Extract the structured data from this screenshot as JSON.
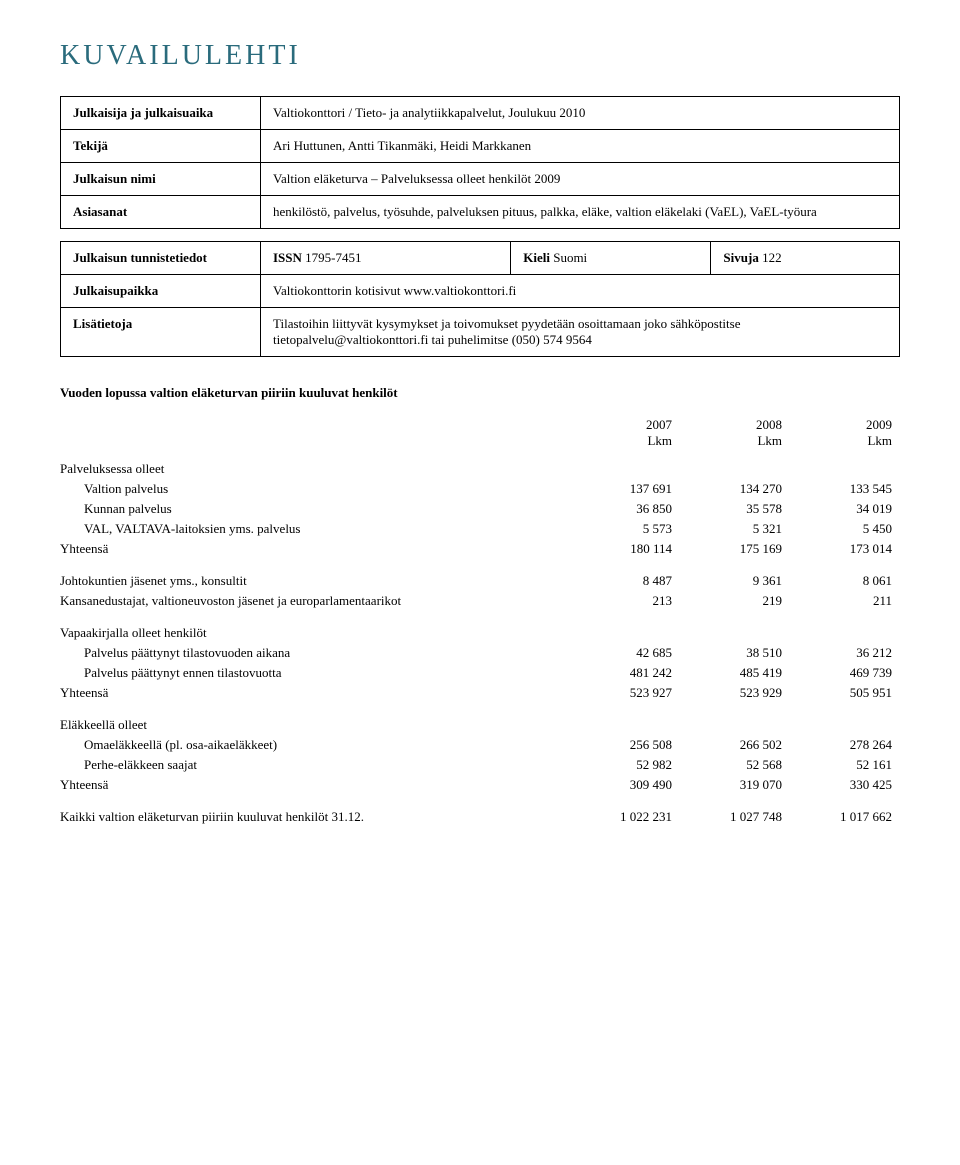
{
  "title": "KUVAILULEHTI",
  "meta": {
    "publisher_label": "Julkaisija ja julkaisuaika",
    "publisher_value": "Valtiokonttori / Tieto- ja analytiikkapalvelut, Joulukuu 2010",
    "author_label": "Tekijä",
    "author_value": "Ari Huttunen, Antti Tikanmäki, Heidi Markkanen",
    "pubname_label": "Julkaisun nimi",
    "pubname_value": "Valtion eläketurva – Palveluksessa olleet henkilöt 2009",
    "keywords_label": "Asiasanat",
    "keywords_value": "henkilöstö, palvelus, työsuhde, palveluksen pituus, palkka, eläke, valtion eläkelaki (VaEL), VaEL-työura",
    "ident_label": "Julkaisun tunnistetiedot",
    "issn_label": "ISSN",
    "issn_value": "1795-7451",
    "lang_label": "Kieli",
    "lang_value": "Suomi",
    "pages_label": "Sivuja",
    "pages_value": "122",
    "place_label": "Julkaisupaikka",
    "place_value": "Valtiokonttorin kotisivut  www.valtiokonttori.fi",
    "moreinfo_label": "Lisätietoja",
    "moreinfo_value": "Tilastoihin liittyvät kysymykset ja toivomukset pyydetään osoittamaan joko sähköpostitse tietopalvelu@valtiokonttori.fi tai puhelimitse (050) 574 9564"
  },
  "summary": {
    "title": "Vuoden lopussa valtion eläketurvan piiriin kuuluvat henkilöt",
    "years": [
      "2007",
      "2008",
      "2009"
    ],
    "unit": "Lkm",
    "sections": [
      {
        "header": "Palveluksessa olleet",
        "rows": [
          {
            "label": "Valtion palvelus",
            "v": [
              "137 691",
              "134 270",
              "133 545"
            ]
          },
          {
            "label": "Kunnan palvelus",
            "v": [
              "36 850",
              "35 578",
              "34 019"
            ]
          },
          {
            "label": "VAL, VALTAVA-laitoksien yms. palvelus",
            "v": [
              "5 573",
              "5 321",
              "5 450"
            ]
          }
        ],
        "total": {
          "label": "Yhteensä",
          "v": [
            "180 114",
            "175 169",
            "173 014"
          ]
        }
      },
      {
        "rows_flat": [
          {
            "label": "Johtokuntien jäsenet yms., konsultit",
            "v": [
              "8 487",
              "9 361",
              "8 061"
            ]
          },
          {
            "label": "Kansanedustajat, valtioneuvoston jäsenet ja europarlamentaarikot",
            "v": [
              "213",
              "219",
              "211"
            ]
          }
        ]
      },
      {
        "header": "Vapaakirjalla olleet henkilöt",
        "rows": [
          {
            "label": "Palvelus päättynyt tilastovuoden aikana",
            "v": [
              "42 685",
              "38 510",
              "36 212"
            ]
          },
          {
            "label": "Palvelus päättynyt ennen tilastovuotta",
            "v": [
              "481 242",
              "485 419",
              "469 739"
            ]
          }
        ],
        "total": {
          "label": "Yhteensä",
          "v": [
            "523 927",
            "523 929",
            "505 951"
          ]
        }
      },
      {
        "header": "Eläkkeellä olleet",
        "rows": [
          {
            "label": "Omaeläkkeellä (pl. osa-aikaeläkkeet)",
            "v": [
              "256 508",
              "266 502",
              "278 264"
            ]
          },
          {
            "label": "Perhe-eläkkeen saajat",
            "v": [
              "52 982",
              "52 568",
              "52 161"
            ]
          }
        ],
        "total": {
          "label": "Yhteensä",
          "v": [
            "309 490",
            "319 070",
            "330 425"
          ]
        }
      }
    ],
    "grand": {
      "label": "Kaikki valtion eläketurvan piiriin kuuluvat henkilöt 31.12.",
      "v": [
        "1 022 231",
        "1 027 748",
        "1 017 662"
      ]
    }
  }
}
